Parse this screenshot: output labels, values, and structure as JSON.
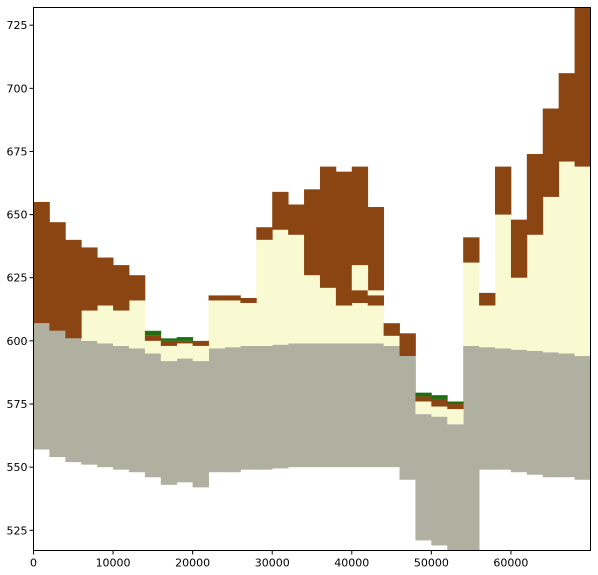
{
  "chart_data": {
    "type": "area",
    "title": "",
    "xlabel": "",
    "ylabel": "",
    "xlim": [
      0,
      70000
    ],
    "ylim": [
      517,
      732
    ],
    "x_ticks": [
      0,
      10000,
      20000,
      30000,
      40000,
      50000,
      60000
    ],
    "y_ticks": [
      525,
      550,
      575,
      600,
      625,
      650,
      675,
      700,
      725
    ],
    "grid": false,
    "legend": "none",
    "layer_colors": {
      "grey": "#b0b0a0",
      "cream": "#fafad2",
      "brown": "#8b4513",
      "green": "#1f6e10"
    },
    "column_edges": [
      0,
      2000,
      4000,
      6000,
      8000,
      10000,
      12000,
      14000,
      16000,
      18000,
      20000,
      22000,
      24000,
      26000,
      28000,
      30000,
      32000,
      34000,
      36000,
      38000,
      40000,
      42000,
      44000,
      46000,
      48000,
      50000,
      52000,
      54000,
      56000,
      58000,
      60000,
      62000,
      64000,
      66000,
      68000,
      70000
    ],
    "layers": [
      {
        "name": "grey",
        "bottom": [
          557,
          554,
          552,
          551,
          550,
          549,
          548,
          546,
          543,
          544,
          542,
          548,
          548,
          549,
          549,
          549.5,
          550,
          550,
          550,
          550,
          550,
          550,
          550,
          545,
          521,
          519,
          517,
          517,
          549,
          549,
          548,
          547,
          546,
          546,
          545
        ],
        "top": [
          607,
          604,
          601,
          600,
          599,
          598,
          597,
          595,
          592,
          593,
          592,
          597,
          597.5,
          598,
          598,
          598.5,
          599,
          599,
          599,
          599,
          599,
          599,
          598,
          594,
          571,
          570,
          567,
          598,
          597.5,
          597,
          596.5,
          596,
          595.5,
          595,
          594
        ]
      },
      {
        "name": "cream",
        "bottom": [
          607,
          604,
          601,
          600,
          599,
          598,
          597,
          595,
          592,
          593,
          592,
          597,
          597.5,
          598,
          598,
          598.5,
          599,
          599,
          599,
          599,
          599,
          599,
          598,
          594,
          571,
          570,
          567,
          598,
          597.5,
          597,
          596.5,
          596,
          595.5,
          595,
          594
        ],
        "top": [
          607,
          604,
          601,
          612,
          614,
          612,
          616,
          600,
          598,
          599,
          598,
          616,
          616,
          615,
          640,
          644,
          642,
          626,
          621,
          614,
          615,
          614,
          602,
          594,
          576,
          574,
          573,
          631,
          614,
          650,
          625,
          642,
          657,
          671,
          669
        ]
      },
      {
        "name": "brown",
        "bottom": [
          607,
          604,
          601,
          612,
          614,
          612,
          616,
          600,
          598,
          599,
          598,
          616,
          616,
          615,
          640,
          644,
          642,
          626,
          621,
          614,
          615,
          614,
          602,
          594,
          576,
          574,
          573,
          631,
          614,
          650,
          625,
          642,
          657,
          671,
          669
        ],
        "top": [
          655,
          647,
          640,
          637,
          633,
          630,
          626,
          602,
          600,
          600,
          600,
          618,
          618,
          617,
          645,
          659,
          654,
          660,
          669,
          667,
          669,
          653,
          607,
          603,
          578,
          577,
          575,
          641,
          619,
          669,
          648,
          674,
          692,
          706,
          732
        ]
      },
      {
        "name": "green",
        "bottom": [
          655,
          647,
          640,
          637,
          633,
          630,
          626,
          602,
          600,
          600,
          600,
          618,
          618,
          617,
          645,
          659,
          654,
          660,
          669,
          667,
          669,
          653,
          607,
          603,
          578,
          577,
          575,
          641,
          619,
          669,
          648,
          674,
          692,
          706,
          732
        ],
        "top": [
          655,
          647,
          640,
          637,
          633,
          630,
          626,
          604,
          601,
          601.5,
          600,
          618,
          618,
          617,
          645,
          659,
          654,
          660,
          669,
          667,
          669,
          653,
          607,
          603,
          579.5,
          578.5,
          576,
          641,
          619,
          669,
          648,
          674,
          692,
          706,
          732
        ]
      }
    ],
    "cream_gaps": [
      {
        "column": 20,
        "bottom": 620,
        "top": 630
      },
      {
        "column": 21,
        "bottom": 618,
        "top": 620
      }
    ]
  }
}
